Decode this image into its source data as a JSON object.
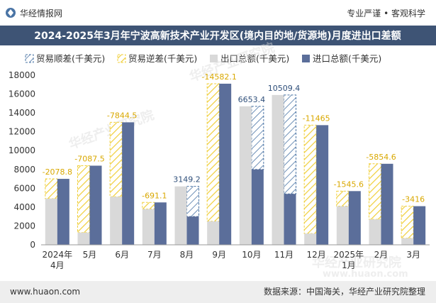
{
  "header": {
    "brand": "华经情报网",
    "tagline": "专业严谨 • 客观科学"
  },
  "footer": {
    "url": "www.huaon.com",
    "source": "数据来源：中国海关，华经产业研究院整理"
  },
  "watermark": {
    "text": "华经产业研究院",
    "url": "www.huaon.com"
  },
  "colors": {
    "title_bg": "#3e5475",
    "export": "#d9d9d9",
    "import": "#5b6e9a",
    "surplus": "#4a74a5",
    "deficit": "#f0cf3a",
    "footer_bg": "#eeeeee"
  },
  "chart_data": {
    "type": "bar",
    "title": "2024-2025年3月年宁波高新技术产业开发区(境内目的地/货源地)月度进出口差额",
    "categories": [
      "2024年\n4月",
      "5月",
      "6月",
      "7月",
      "8月",
      "9月",
      "10月",
      "11月",
      "12月",
      "2025年\n1月",
      "2月",
      "3月"
    ],
    "series": [
      {
        "name": "出口总额(千美元)",
        "values": [
          4900,
          1300,
          5100,
          3800,
          6200,
          2500,
          14700,
          15900,
          1200,
          4100,
          2700,
          700
        ]
      },
      {
        "name": "进口总额(千美元)",
        "values": [
          7000,
          8400,
          13000,
          4500,
          3000,
          17100,
          8000,
          5400,
          12700,
          5700,
          8600,
          4100
        ]
      }
    ],
    "balance": {
      "values": [
        -2078.8,
        -7087.5,
        -7844.5,
        -691.1,
        3149.2,
        -14582.1,
        6653.4,
        10509.4,
        -11465,
        -1545.6,
        -5854.6,
        -3416
      ],
      "labels": [
        "-2078.8",
        "-7087.5",
        "-7844.5",
        "-691.1",
        "3149.2",
        "-14582.1",
        "6653.4",
        "10509.4",
        "-11465",
        "-1545.6",
        "-5854.6",
        "-3416"
      ]
    },
    "legend": [
      "贸易顺差(千美元)",
      "贸易逆差(千美元)",
      "出口总额(千美元)",
      "进口总额(千美元)"
    ],
    "legend_position": "top",
    "xlabel": "",
    "ylabel": "",
    "ylim": [
      0,
      18000
    ],
    "yticks": [
      0,
      2000,
      4000,
      6000,
      8000,
      10000,
      12000,
      14000,
      16000,
      18000
    ],
    "grid": false
  }
}
